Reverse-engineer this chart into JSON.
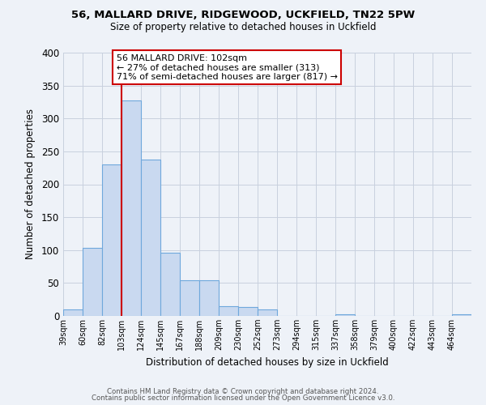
{
  "title1": "56, MALLARD DRIVE, RIDGEWOOD, UCKFIELD, TN22 5PW",
  "title2": "Size of property relative to detached houses in Uckfield",
  "xlabel": "Distribution of detached houses by size in Uckfield",
  "ylabel": "Number of detached properties",
  "bin_labels": [
    "39sqm",
    "60sqm",
    "82sqm",
    "103sqm",
    "124sqm",
    "145sqm",
    "167sqm",
    "188sqm",
    "209sqm",
    "230sqm",
    "252sqm",
    "273sqm",
    "294sqm",
    "315sqm",
    "337sqm",
    "358sqm",
    "379sqm",
    "400sqm",
    "422sqm",
    "443sqm",
    "464sqm"
  ],
  "bin_edges": [
    0,
    1,
    2,
    3,
    4,
    5,
    6,
    7,
    8,
    9,
    10,
    11,
    12,
    13,
    14,
    15,
    16,
    17,
    18,
    19,
    20
  ],
  "bar_values": [
    10,
    103,
    230,
    328,
    238,
    96,
    54,
    54,
    15,
    14,
    10,
    0,
    0,
    0,
    3,
    0,
    0,
    0,
    0,
    0,
    2
  ],
  "bar_facecolor": "#c9d9f0",
  "bar_edgecolor": "#6fa8dc",
  "grid_color": "#c8d0de",
  "bg_color": "#eef2f8",
  "vline_x": 3,
  "vline_color": "#cc0000",
  "annotation_title": "56 MALLARD DRIVE: 102sqm",
  "annotation_line1": "← 27% of detached houses are smaller (313)",
  "annotation_line2": "71% of semi-detached houses are larger (817) →",
  "annotation_box_color": "#cc0000",
  "ylim": [
    0,
    400
  ],
  "yticks": [
    0,
    50,
    100,
    150,
    200,
    250,
    300,
    350,
    400
  ],
  "footer1": "Contains HM Land Registry data © Crown copyright and database right 2024.",
  "footer2": "Contains public sector information licensed under the Open Government Licence v3.0."
}
